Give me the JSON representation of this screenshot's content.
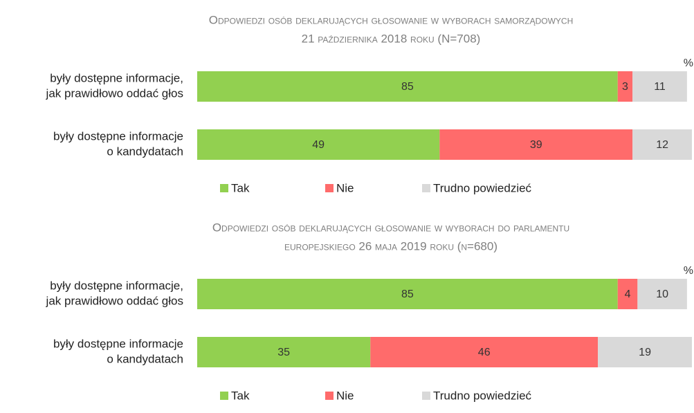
{
  "chart_data": [
    {
      "type": "stacked-bar-horizontal",
      "title": [
        "Odpowiedzi osób deklarujących głosowanie w wyborach samorządowych",
        "21 października 2018 roku (N=708)"
      ],
      "unit": "%",
      "categories": [
        [
          "były dostępne informacje,",
          "jak prawidłowo oddać głos"
        ],
        [
          "były dostępne informacje",
          "o kandydatach"
        ]
      ],
      "series": [
        {
          "name": "Tak",
          "color": "#92d050",
          "values": [
            85,
            49
          ]
        },
        {
          "name": "Nie",
          "color": "#ff6b6b",
          "values": [
            3,
            39
          ]
        },
        {
          "name": "Trudno powiedzieć",
          "color": "#d9d9d9",
          "values": [
            11,
            12
          ]
        }
      ]
    },
    {
      "type": "stacked-bar-horizontal",
      "title": [
        "Odpowiedzi osób deklarujących głosowanie w wyborach do parlamentu",
        "europejskiego 26 maja 2019 roku (n=680)"
      ],
      "unit": "%",
      "categories": [
        [
          "były dostępne informacje,",
          "jak prawidłowo oddać głos"
        ],
        [
          "były dostępne informacje",
          "o kandydatach"
        ]
      ],
      "series": [
        {
          "name": "Tak",
          "color": "#92d050",
          "values": [
            85,
            35
          ]
        },
        {
          "name": "Nie",
          "color": "#ff6b6b",
          "values": [
            4,
            46
          ]
        },
        {
          "name": "Trudno powiedzieć",
          "color": "#d9d9d9",
          "values": [
            10,
            19
          ]
        }
      ]
    }
  ]
}
